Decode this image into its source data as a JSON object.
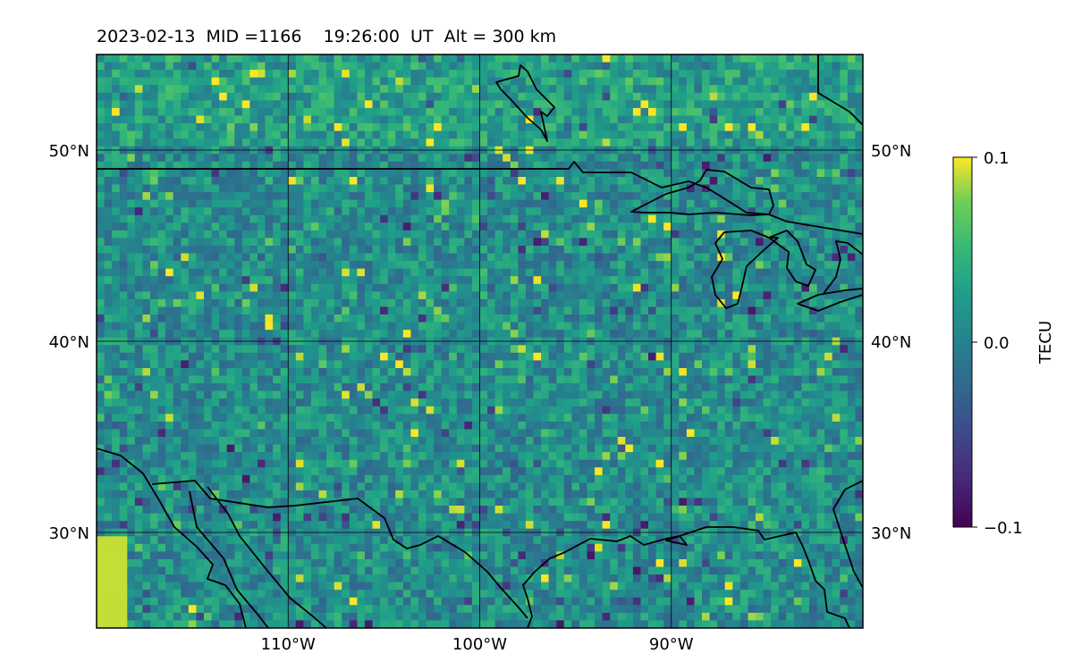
{
  "title": "2023-02-13  MID =1166    19:26:00  UT  Alt = 300 km",
  "map": {
    "lon_range": [
      -120,
      -80
    ],
    "lat_range": [
      25,
      55
    ],
    "lat_ticks": [
      {
        "value": 50,
        "label": "50°N"
      },
      {
        "value": 40,
        "label": "40°N"
      },
      {
        "value": 30,
        "label": "30°N"
      }
    ],
    "lon_ticks": [
      {
        "value": -110,
        "label": "110°W"
      },
      {
        "value": -100,
        "label": "100°W"
      },
      {
        "value": -90,
        "label": "90°W"
      }
    ],
    "colormap": "viridis",
    "coastline_color": "#000000",
    "gridline_color": "#000000"
  },
  "colorbar": {
    "label": "TECU",
    "range": [
      -0.1,
      0.1
    ],
    "ticks": [
      {
        "value": 0.1,
        "label": "0.1"
      },
      {
        "value": 0.0,
        "label": "0.0"
      },
      {
        "value": -0.1,
        "label": "−0.1"
      }
    ]
  }
}
